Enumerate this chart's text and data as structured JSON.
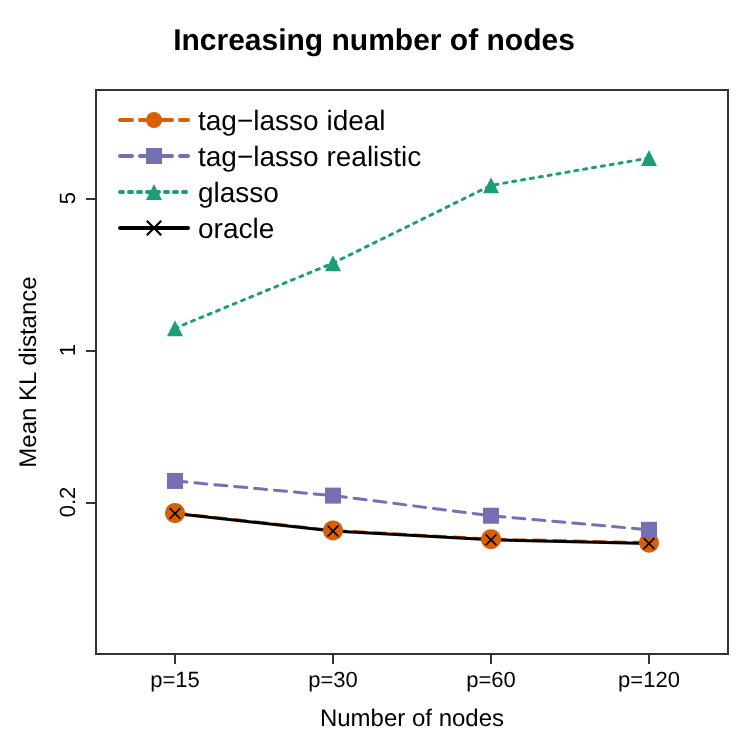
{
  "chart_data": {
    "type": "line",
    "title": "Increasing number of nodes",
    "xlabel": "Number of nodes",
    "ylabel": "Mean KL distance",
    "categories": [
      "p=15",
      "p=30",
      "p=60",
      "p=120"
    ],
    "series": [
      {
        "name": "tag−lasso ideal",
        "color": "#d95f02",
        "marker": "circle",
        "line_style": "dashed",
        "values": [
          0.178,
          0.148,
          0.135,
          0.13
        ]
      },
      {
        "name": "tag−lasso realistic",
        "color": "#7570b3",
        "marker": "square",
        "line_style": "dashed",
        "values": [
          0.25,
          0.214,
          0.173,
          0.149
        ]
      },
      {
        "name": "glasso",
        "color": "#1b9e77",
        "marker": "triangle",
        "line_style": "dotted",
        "values": [
          1.26,
          2.51,
          5.72,
          7.64
        ]
      },
      {
        "name": "oracle",
        "color": "#000000",
        "marker": "cross",
        "line_style": "solid",
        "values": [
          0.177,
          0.147,
          0.134,
          0.129
        ]
      }
    ],
    "log": "y",
    "ylim": [
      0.04,
      15.7
    ],
    "yticks": [
      0.2,
      1,
      5
    ],
    "grid": false,
    "legend": "top left"
  }
}
